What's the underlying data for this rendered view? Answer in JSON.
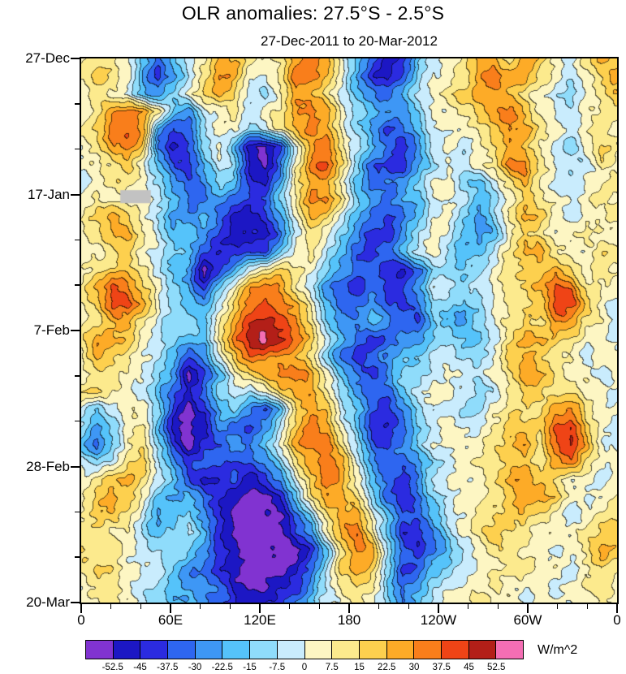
{
  "chart_data": {
    "type": "heatmap",
    "title": "OLR anomalies: 27.5°S - 2.5°S",
    "subtitle": "27-Dec-2011 to 20-Mar-2012",
    "x_axis": {
      "tick_labels": [
        "0",
        "60E",
        "120E",
        "180",
        "120W",
        "60W",
        "0"
      ],
      "minor_ticks_per_interval": 2
    },
    "y_axis": {
      "tick_labels": [
        "27-Dec",
        "17-Jan",
        "7-Feb",
        "28-Feb",
        "20-Mar"
      ],
      "minor_ticks_per_interval": 2
    },
    "colorbar": {
      "levels": [
        -52.5,
        -45,
        -37.5,
        -30,
        -22.5,
        -15,
        -7.5,
        0,
        7.5,
        15,
        22.5,
        30,
        37.5,
        45,
        52.5
      ],
      "tick_labels": [
        "-52.5",
        "-45",
        "-37.5",
        "-30",
        "-22.5",
        "-15",
        "-7.5",
        "0",
        "7.5",
        "15",
        "22.5",
        "30",
        "37.5",
        "45",
        "52.5"
      ],
      "colors": [
        "#8133d1",
        "#1c17c4",
        "#2b2be0",
        "#2e66f0",
        "#3e97f5",
        "#55c3fa",
        "#8fdcfb",
        "#c9ecfd",
        "#fdf6c3",
        "#fcea8d",
        "#fdd04e",
        "#fdab27",
        "#f97e1b",
        "#ef4416",
        "#b31f18",
        "#f46eb4"
      ],
      "unit": "W/m^2",
      "missing_color": "#c2c2c2"
    },
    "missing_patch": {
      "x": 0.073,
      "y": 0.242,
      "w": 0.057,
      "h": 0.024
    },
    "grid_encoding": "Each row string is one time step (top=27-Dec, bottom=20-Mar); each character is a hex index 0-15 into colorbar.colors, i.e. the filled-contour level of the OLR anomaly at that longitude.",
    "grid": [
      "899853578bb989bcb853125789bb9ba879ba",
      "9a9842479cb879cca842136889bcbb9878ab",
      "89875468ab9768bb975435789abba987689a",
      "89bcb954789789bcb865446889abca877899",
      "9acdb423688679bcb8642357889acb987898",
      "89bca3136851027bc97532478789ba8768a9",
      "889a85325761038cda6322467789cc987798",
      "789986434652149bb853346886579b877889",
      "898887533432369cc964345787568a987898",
      "9aba86445311248ba753235786469ba87889",
      "89bb9755421113798642246875458a988988",
      "889a8765312225897532357865579bb98899",
      "89aa975402479a986433213665689aab9898",
      "9bdca864258bcb974323224776789abdc988",
      "8addb86547acdcb853343236656899adda87",
      "89bb976658bdedc96445432554689a9cb987",
      "9bba876559cefeca7532344665579bba9887",
      "8ba9875247accbb9632345577668aba98788",
      "89987640258abccb8532466787789bb98878",
      "9a98753136768abb9643357887679aa99887",
      "757886202564259ba75324687668999bc988",
      "64689510143247acb85223578779aaadda87",
      "53589620234458bcc96324688889ab9ceb87",
      "7679a7423323469bcb7433467899aa9bc988",
      "89ab97531231247acb8532478889bba98878",
      "8aba854532100259bb9632367889abba8789",
      "9aa97456420000369bb853357899aa987899",
      "99886567520000248bc95224689a998889aa",
      "a99876664210000259cb63235789988789ba",
      "9a987754321000136aba62356788998878a9",
      "899876544310012479a95346788988878998",
      "889876554321123578986457889887888898"
    ]
  }
}
